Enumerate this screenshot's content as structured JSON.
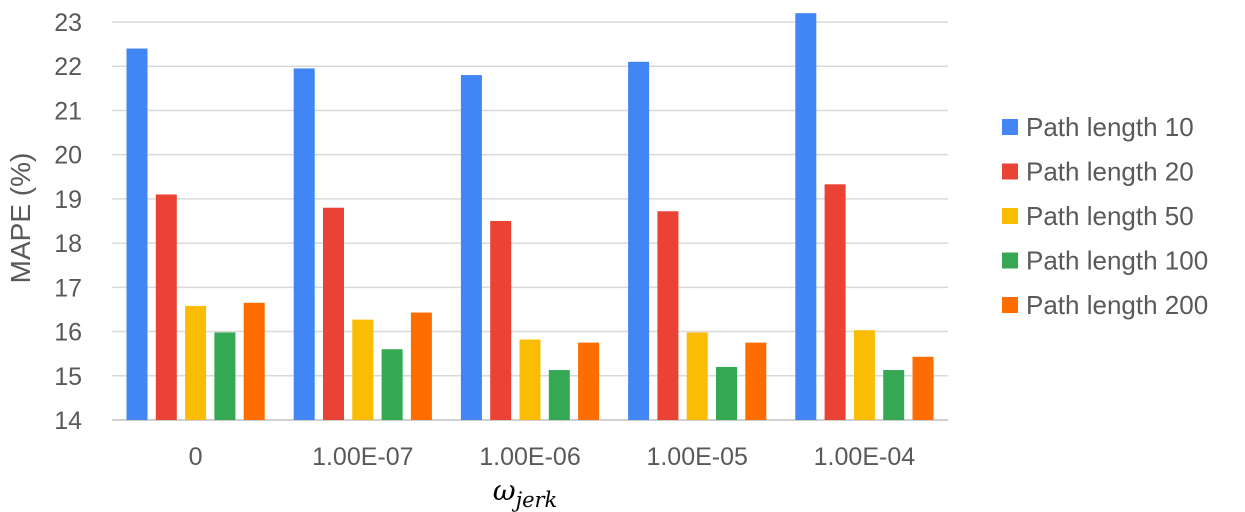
{
  "chart_data": {
    "type": "bar",
    "title": "",
    "xlabel": {
      "base": "ω",
      "subscript": "jerk"
    },
    "ylabel": "MAPE (%)",
    "ylim": [
      14,
      23
    ],
    "yticks": [
      "14",
      "15",
      "16",
      "17",
      "18",
      "19",
      "20",
      "21",
      "22",
      "23"
    ],
    "grid": true,
    "legend_position": "right",
    "categories": [
      "0",
      "1.00E-07",
      "1.00E-06",
      "1.00E-05",
      "1.00E-04"
    ],
    "series": [
      {
        "name": "Path length 10",
        "color": "#4285F4",
        "values": [
          22.4,
          21.95,
          21.8,
          22.1,
          23.2
        ]
      },
      {
        "name": "Path length 20",
        "color": "#EA4335",
        "values": [
          19.1,
          18.8,
          18.5,
          18.72,
          19.33
        ]
      },
      {
        "name": "Path length 50",
        "color": "#FBBC04",
        "values": [
          16.58,
          16.27,
          15.82,
          15.98,
          16.03
        ]
      },
      {
        "name": "Path length 100",
        "color": "#34A853",
        "values": [
          15.98,
          15.6,
          15.13,
          15.2,
          15.13
        ]
      },
      {
        "name": "Path length 200",
        "color": "#FF6D01",
        "values": [
          16.65,
          16.43,
          15.75,
          15.75,
          15.43
        ]
      }
    ]
  }
}
